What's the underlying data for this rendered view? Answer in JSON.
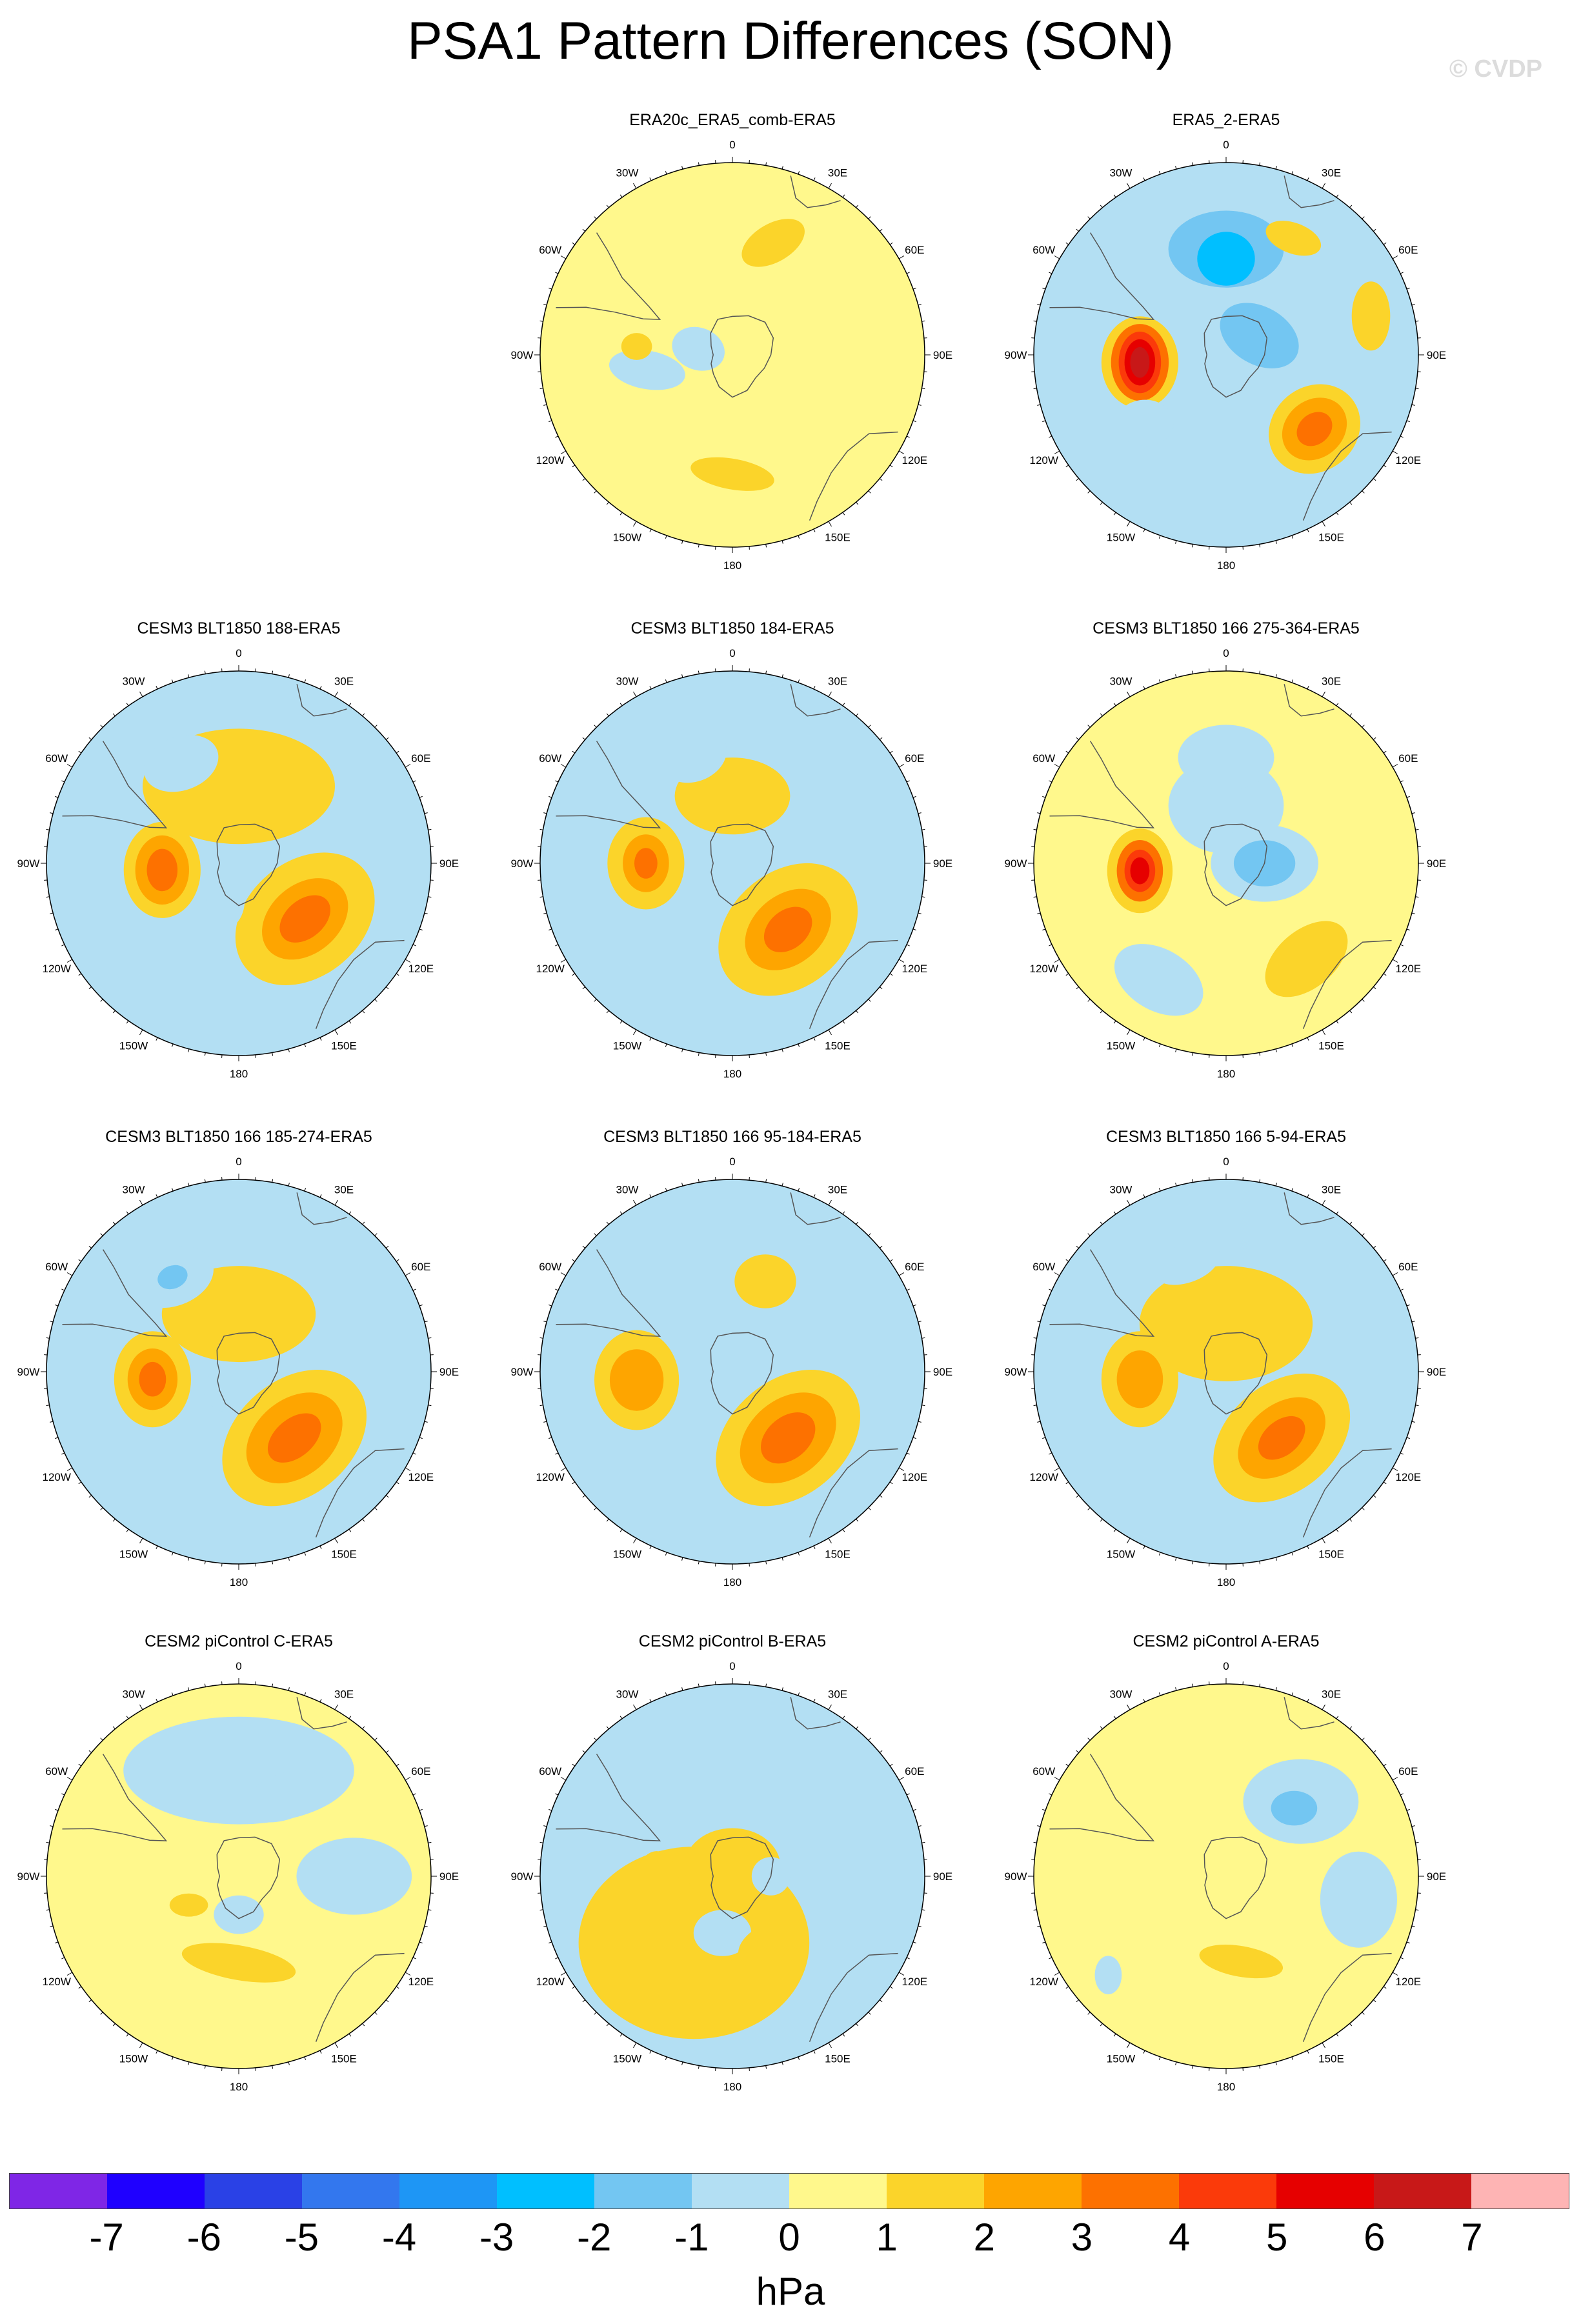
{
  "title": "PSA1 Pattern Differences (SON)",
  "watermark": "© CVDP",
  "unit": "hPa",
  "lon_labels": [
    "0",
    "30E",
    "60E",
    "90E",
    "120E",
    "150E",
    "180",
    "150W",
    "120W",
    "90W",
    "60W",
    "30W"
  ],
  "colorbar": {
    "colors": [
      "#7f26e6",
      "#1f00ff",
      "#2a41e6",
      "#3377ee",
      "#1e96f5",
      "#00bfff",
      "#73c6f2",
      "#b3dff3",
      "#fff88c",
      "#fbd42a",
      "#fea500",
      "#fd7100",
      "#fb3a0a",
      "#e60000",
      "#c81818",
      "#feb4b4"
    ],
    "ticks": [
      "-7",
      "-6",
      "-5",
      "-4",
      "-3",
      "-2",
      "-1",
      "0",
      "1",
      "2",
      "3",
      "4",
      "5",
      "6",
      "7"
    ]
  },
  "panels": [
    {
      "title": "ERA20c_ERA5_comb-ERA5",
      "base": "#fff88c",
      "features": [
        {
          "lon": 20,
          "r": 0.62,
          "rx": 0.18,
          "ry": 0.1,
          "rot": -30,
          "v": 1
        },
        {
          "lon": 280,
          "r": 0.18,
          "rx": 0.14,
          "ry": 0.11,
          "rot": 20,
          "v": -1
        },
        {
          "lon": 260,
          "r": 0.45,
          "rx": 0.2,
          "ry": 0.1,
          "rot": 10,
          "v": -1
        },
        {
          "lon": 275,
          "r": 0.5,
          "rx": 0.08,
          "ry": 0.07,
          "rot": 0,
          "v": 1
        },
        {
          "lon": 180,
          "r": 0.62,
          "rx": 0.22,
          "ry": 0.08,
          "rot": 10,
          "v": 1
        }
      ]
    },
    {
      "title": "ERA5_2-ERA5",
      "base": "#b3dff3",
      "features": [
        {
          "lon": 0,
          "r": 0.55,
          "rx": 0.3,
          "ry": 0.2,
          "rot": 0,
          "v": -2
        },
        {
          "lon": 0,
          "r": 0.5,
          "rx": 0.15,
          "ry": 0.14,
          "rot": 0,
          "v": -3
        },
        {
          "lon": 60,
          "r": 0.2,
          "rx": 0.22,
          "ry": 0.15,
          "rot": 30,
          "v": -2
        },
        {
          "lon": 30,
          "r": 0.7,
          "rx": 0.15,
          "ry": 0.08,
          "rot": 20,
          "v": 1
        },
        {
          "lon": 75,
          "r": 0.78,
          "rx": 0.1,
          "ry": 0.18,
          "rot": 0,
          "v": 1
        },
        {
          "lon": 130,
          "r": 0.6,
          "rx": 0.25,
          "ry": 0.22,
          "rot": -40,
          "v": 1
        },
        {
          "lon": 130,
          "r": 0.6,
          "rx": 0.18,
          "ry": 0.15,
          "rot": -40,
          "v": 2
        },
        {
          "lon": 130,
          "r": 0.6,
          "rx": 0.1,
          "ry": 0.08,
          "rot": -40,
          "v": 3
        },
        {
          "lon": 265,
          "r": 0.45,
          "rx": 0.2,
          "ry": 0.24,
          "rot": 0,
          "v": 1
        },
        {
          "lon": 265,
          "r": 0.45,
          "rx": 0.15,
          "ry": 0.2,
          "rot": 0,
          "v": 3
        },
        {
          "lon": 265,
          "r": 0.45,
          "rx": 0.11,
          "ry": 0.16,
          "rot": 0,
          "v": 4
        },
        {
          "lon": 265,
          "r": 0.45,
          "rx": 0.08,
          "ry": 0.12,
          "rot": 0,
          "v": 5
        },
        {
          "lon": 265,
          "r": 0.45,
          "rx": 0.05,
          "ry": 0.08,
          "rot": 0,
          "v": 6
        },
        {
          "lon": 230,
          "r": 0.55,
          "rx": 0.15,
          "ry": 0.12,
          "rot": 0,
          "v": -1
        }
      ]
    },
    {
      "title": "CESM3 BLT1850 188-ERA5",
      "base": "#b3dff3",
      "features": [
        {
          "lon": 0,
          "r": 0.4,
          "rx": 0.5,
          "ry": 0.3,
          "rot": 0,
          "v": 1
        },
        {
          "lon": 330,
          "r": 0.6,
          "rx": 0.2,
          "ry": 0.14,
          "rot": -20,
          "v": -1
        },
        {
          "lon": 130,
          "r": 0.45,
          "rx": 0.4,
          "ry": 0.3,
          "rot": -40,
          "v": 1
        },
        {
          "lon": 130,
          "r": 0.45,
          "rx": 0.25,
          "ry": 0.18,
          "rot": -40,
          "v": 2
        },
        {
          "lon": 130,
          "r": 0.45,
          "rx": 0.15,
          "ry": 0.1,
          "rot": -40,
          "v": 3
        },
        {
          "lon": 265,
          "r": 0.4,
          "rx": 0.2,
          "ry": 0.25,
          "rot": 0,
          "v": 1
        },
        {
          "lon": 265,
          "r": 0.4,
          "rx": 0.14,
          "ry": 0.18,
          "rot": 0,
          "v": 2
        },
        {
          "lon": 265,
          "r": 0.4,
          "rx": 0.08,
          "ry": 0.11,
          "rot": 0,
          "v": 3
        },
        {
          "lon": 200,
          "r": 0.2,
          "rx": 0.1,
          "ry": 0.15,
          "rot": 0,
          "v": -1
        }
      ]
    },
    {
      "title": "CESM3 BLT1850 184-ERA5",
      "base": "#b3dff3",
      "features": [
        {
          "lon": 0,
          "r": 0.35,
          "rx": 0.3,
          "ry": 0.2,
          "rot": 0,
          "v": 1
        },
        {
          "lon": 340,
          "r": 0.6,
          "rx": 0.18,
          "ry": 0.14,
          "rot": -20,
          "v": -1
        },
        {
          "lon": 140,
          "r": 0.45,
          "rx": 0.4,
          "ry": 0.3,
          "rot": -40,
          "v": 1
        },
        {
          "lon": 140,
          "r": 0.45,
          "rx": 0.25,
          "ry": 0.18,
          "rot": -40,
          "v": 2
        },
        {
          "lon": 140,
          "r": 0.45,
          "rx": 0.14,
          "ry": 0.1,
          "rot": -40,
          "v": 3
        },
        {
          "lon": 270,
          "r": 0.45,
          "rx": 0.2,
          "ry": 0.24,
          "rot": 0,
          "v": 1
        },
        {
          "lon": 270,
          "r": 0.45,
          "rx": 0.12,
          "ry": 0.15,
          "rot": 0,
          "v": 2
        },
        {
          "lon": 270,
          "r": 0.45,
          "rx": 0.06,
          "ry": 0.08,
          "rot": 0,
          "v": 3
        }
      ]
    },
    {
      "title": "CESM3 BLT1850 166 275-364-ERA5",
      "base": "#fff88c",
      "features": [
        {
          "lon": 0,
          "r": 0.3,
          "rx": 0.3,
          "ry": 0.25,
          "rot": 0,
          "v": -1
        },
        {
          "lon": 90,
          "r": 0.2,
          "rx": 0.28,
          "ry": 0.2,
          "rot": 0,
          "v": -1
        },
        {
          "lon": 90,
          "r": 0.2,
          "rx": 0.16,
          "ry": 0.12,
          "rot": 0,
          "v": -2
        },
        {
          "lon": 0,
          "r": 0.55,
          "rx": 0.25,
          "ry": 0.17,
          "rot": 0,
          "v": -1
        },
        {
          "lon": 210,
          "r": 0.7,
          "rx": 0.25,
          "ry": 0.16,
          "rot": 30,
          "v": -1
        },
        {
          "lon": 140,
          "r": 0.65,
          "rx": 0.25,
          "ry": 0.15,
          "rot": -40,
          "v": 1
        },
        {
          "lon": 265,
          "r": 0.45,
          "rx": 0.17,
          "ry": 0.22,
          "rot": 0,
          "v": 1
        },
        {
          "lon": 265,
          "r": 0.45,
          "rx": 0.12,
          "ry": 0.16,
          "rot": 0,
          "v": 3
        },
        {
          "lon": 265,
          "r": 0.45,
          "rx": 0.08,
          "ry": 0.11,
          "rot": 0,
          "v": 4
        },
        {
          "lon": 265,
          "r": 0.45,
          "rx": 0.05,
          "ry": 0.07,
          "rot": 0,
          "v": 5
        }
      ]
    },
    {
      "title": "CESM3 BLT1850 166 185-274-ERA5",
      "base": "#b3dff3",
      "features": [
        {
          "lon": 0,
          "r": 0.3,
          "rx": 0.4,
          "ry": 0.25,
          "rot": 0,
          "v": 1
        },
        {
          "lon": 325,
          "r": 0.6,
          "rx": 0.22,
          "ry": 0.15,
          "rot": -20,
          "v": -1
        },
        {
          "lon": 325,
          "r": 0.6,
          "rx": 0.08,
          "ry": 0.06,
          "rot": -20,
          "v": -2
        },
        {
          "lon": 200,
          "r": 0.1,
          "rx": 0.15,
          "ry": 0.12,
          "rot": 0,
          "v": -1
        },
        {
          "lon": 140,
          "r": 0.45,
          "rx": 0.42,
          "ry": 0.3,
          "rot": -40,
          "v": 1
        },
        {
          "lon": 140,
          "r": 0.45,
          "rx": 0.28,
          "ry": 0.2,
          "rot": -40,
          "v": 2
        },
        {
          "lon": 140,
          "r": 0.45,
          "rx": 0.16,
          "ry": 0.1,
          "rot": -40,
          "v": 3
        },
        {
          "lon": 265,
          "r": 0.45,
          "rx": 0.2,
          "ry": 0.25,
          "rot": 0,
          "v": 1
        },
        {
          "lon": 265,
          "r": 0.45,
          "rx": 0.13,
          "ry": 0.16,
          "rot": 0,
          "v": 2
        },
        {
          "lon": 265,
          "r": 0.45,
          "rx": 0.07,
          "ry": 0.09,
          "rot": 0,
          "v": 3
        }
      ]
    },
    {
      "title": "CESM3 BLT1850 166 95-184-ERA5",
      "base": "#b3dff3",
      "features": [
        {
          "lon": 20,
          "r": 0.5,
          "rx": 0.16,
          "ry": 0.14,
          "rot": 0,
          "v": 1
        },
        {
          "lon": 140,
          "r": 0.45,
          "rx": 0.42,
          "ry": 0.3,
          "rot": -40,
          "v": 1
        },
        {
          "lon": 140,
          "r": 0.45,
          "rx": 0.28,
          "ry": 0.2,
          "rot": -40,
          "v": 2
        },
        {
          "lon": 140,
          "r": 0.45,
          "rx": 0.16,
          "ry": 0.11,
          "rot": -40,
          "v": 3
        },
        {
          "lon": 265,
          "r": 0.5,
          "rx": 0.22,
          "ry": 0.26,
          "rot": 0,
          "v": 1
        },
        {
          "lon": 265,
          "r": 0.5,
          "rx": 0.14,
          "ry": 0.16,
          "rot": 0,
          "v": 2
        }
      ]
    },
    {
      "title": "CESM3 BLT1850 166 5-94-ERA5",
      "base": "#b3dff3",
      "features": [
        {
          "lon": 0,
          "r": 0.25,
          "rx": 0.45,
          "ry": 0.3,
          "rot": 0,
          "v": 1
        },
        {
          "lon": 340,
          "r": 0.6,
          "rx": 0.18,
          "ry": 0.1,
          "rot": -20,
          "v": -1
        },
        {
          "lon": 140,
          "r": 0.45,
          "rx": 0.4,
          "ry": 0.28,
          "rot": -40,
          "v": 1
        },
        {
          "lon": 140,
          "r": 0.45,
          "rx": 0.26,
          "ry": 0.17,
          "rot": -40,
          "v": 2
        },
        {
          "lon": 140,
          "r": 0.45,
          "rx": 0.14,
          "ry": 0.09,
          "rot": -40,
          "v": 3
        },
        {
          "lon": 265,
          "r": 0.45,
          "rx": 0.2,
          "ry": 0.25,
          "rot": 0,
          "v": 1
        },
        {
          "lon": 265,
          "r": 0.45,
          "rx": 0.12,
          "ry": 0.15,
          "rot": 0,
          "v": 2
        }
      ]
    },
    {
      "title": "CESM2 piControl C-ERA5",
      "base": "#fff88c",
      "features": [
        {
          "lon": 0,
          "r": 0.55,
          "rx": 0.6,
          "ry": 0.28,
          "rot": 0,
          "v": -1
        },
        {
          "lon": 30,
          "r": 0.48,
          "rx": 0.22,
          "ry": 0.12,
          "rot": -20,
          "v": -1
        },
        {
          "lon": 90,
          "r": 0.6,
          "rx": 0.3,
          "ry": 0.2,
          "rot": 0,
          "v": -1
        },
        {
          "lon": 240,
          "r": 0.3,
          "rx": 0.1,
          "ry": 0.06,
          "rot": 0,
          "v": 1
        },
        {
          "lon": 180,
          "r": 0.2,
          "rx": 0.13,
          "ry": 0.1,
          "rot": 0,
          "v": -1
        },
        {
          "lon": 180,
          "r": 0.45,
          "rx": 0.3,
          "ry": 0.09,
          "rot": 10,
          "v": 1
        }
      ]
    },
    {
      "title": "CESM2 piControl B-ERA5",
      "base": "#b3dff3",
      "features": [
        {
          "lon": 210,
          "r": 0.4,
          "rx": 0.6,
          "ry": 0.5,
          "rot": 0,
          "v": 1
        },
        {
          "lon": 0,
          "r": 0.05,
          "rx": 0.25,
          "ry": 0.2,
          "rot": 0,
          "v": 1
        },
        {
          "lon": 90,
          "r": 0.2,
          "rx": 0.1,
          "ry": 0.1,
          "rot": 0,
          "v": -1
        },
        {
          "lon": 190,
          "r": 0.3,
          "rx": 0.15,
          "ry": 0.12,
          "rot": 0,
          "v": -1
        },
        {
          "lon": 155,
          "r": 0.4,
          "rx": 0.15,
          "ry": 0.1,
          "rot": -30,
          "v": 1
        },
        {
          "lon": 260,
          "r": 0.4,
          "rx": 0.12,
          "ry": 0.2,
          "rot": 0,
          "v": 1
        }
      ]
    },
    {
      "title": "CESM2 piControl A-ERA5",
      "base": "#fff88c",
      "features": [
        {
          "lon": 45,
          "r": 0.55,
          "rx": 0.3,
          "ry": 0.22,
          "rot": 0,
          "v": -1
        },
        {
          "lon": 45,
          "r": 0.5,
          "rx": 0.12,
          "ry": 0.09,
          "rot": 0,
          "v": -2
        },
        {
          "lon": 100,
          "r": 0.7,
          "rx": 0.2,
          "ry": 0.25,
          "rot": 0,
          "v": -1
        },
        {
          "lon": 230,
          "r": 0.8,
          "rx": 0.07,
          "ry": 0.1,
          "rot": 0,
          "v": -1
        },
        {
          "lon": 170,
          "r": 0.45,
          "rx": 0.22,
          "ry": 0.08,
          "rot": 10,
          "v": 1
        }
      ]
    }
  ]
}
